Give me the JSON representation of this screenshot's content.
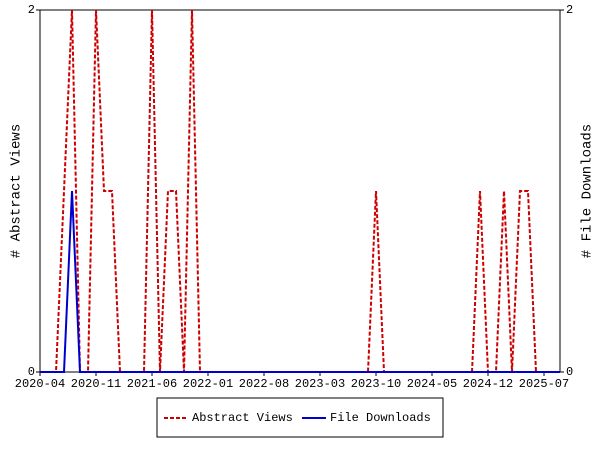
{
  "chart_data": {
    "type": "line",
    "y_label": "# Abstract Views",
    "y2_label": "# File Downloads",
    "x": [
      "2020-04",
      "2020-05",
      "2020-06",
      "2020-07",
      "2020-08",
      "2020-09",
      "2020-10",
      "2020-11",
      "2020-12",
      "2021-01",
      "2021-02",
      "2021-03",
      "2021-04",
      "2021-05",
      "2021-06",
      "2021-07",
      "2021-08",
      "2021-09",
      "2021-10",
      "2021-11",
      "2021-12",
      "2022-01",
      "2022-02",
      "2022-03",
      "2022-04",
      "2022-05",
      "2022-06",
      "2022-07",
      "2022-08",
      "2022-09",
      "2022-10",
      "2022-11",
      "2022-12",
      "2023-01",
      "2023-02",
      "2023-03",
      "2023-04",
      "2023-05",
      "2023-06",
      "2023-07",
      "2023-08",
      "2023-09",
      "2023-10",
      "2023-11",
      "2023-12",
      "2024-01",
      "2024-02",
      "2024-03",
      "2024-04",
      "2024-05",
      "2024-06",
      "2024-07",
      "2024-08",
      "2024-09",
      "2024-10",
      "2024-11",
      "2024-12",
      "2025-01",
      "2025-02",
      "2025-03",
      "2025-04",
      "2025-05",
      "2025-06",
      "2025-07",
      "2025-08",
      "2025-09"
    ],
    "series": [
      {
        "name": "Abstract Views",
        "color": "#cc0000",
        "dash": true,
        "values": [
          0,
          0,
          0,
          1,
          2,
          0,
          0,
          2,
          1,
          1,
          0,
          0,
          0,
          0,
          2,
          0,
          1,
          1,
          0,
          2,
          0,
          0,
          0,
          0,
          0,
          0,
          0,
          0,
          0,
          0,
          0,
          0,
          0,
          0,
          0,
          0,
          0,
          0,
          0,
          0,
          0,
          0,
          1,
          0,
          0,
          0,
          0,
          0,
          0,
          0,
          0,
          0,
          0,
          0,
          0,
          1,
          0,
          0,
          1,
          0,
          1,
          1,
          0,
          0,
          0,
          0
        ]
      },
      {
        "name": "File Downloads",
        "color": "#0000cc",
        "dash": false,
        "axis": "y2",
        "values": [
          0,
          0,
          0,
          0,
          1,
          0,
          0,
          0,
          0,
          0,
          0,
          0,
          0,
          0,
          0,
          0,
          0,
          0,
          0,
          0,
          0,
          0,
          0,
          0,
          0,
          0,
          0,
          0,
          0,
          0,
          0,
          0,
          0,
          0,
          0,
          0,
          0,
          0,
          0,
          0,
          0,
          0,
          0,
          0,
          0,
          0,
          0,
          0,
          0,
          0,
          0,
          0,
          0,
          0,
          0,
          0,
          0,
          0,
          0,
          0,
          0,
          0,
          0,
          0,
          0,
          0
        ]
      }
    ],
    "xlim": [
      "2020-04",
      "2025-09"
    ],
    "xticks": [
      "2020-04",
      "2020-11",
      "2021-06",
      "2022-01",
      "2022-08",
      "2023-03",
      "2023-10",
      "2024-05",
      "2024-12",
      "2025-07"
    ],
    "ylim": [
      0,
      2
    ],
    "yticks": [
      0,
      2
    ],
    "y2lim": [
      0,
      2
    ],
    "y2ticks": [
      0,
      2
    ],
    "legend": "bottom"
  }
}
